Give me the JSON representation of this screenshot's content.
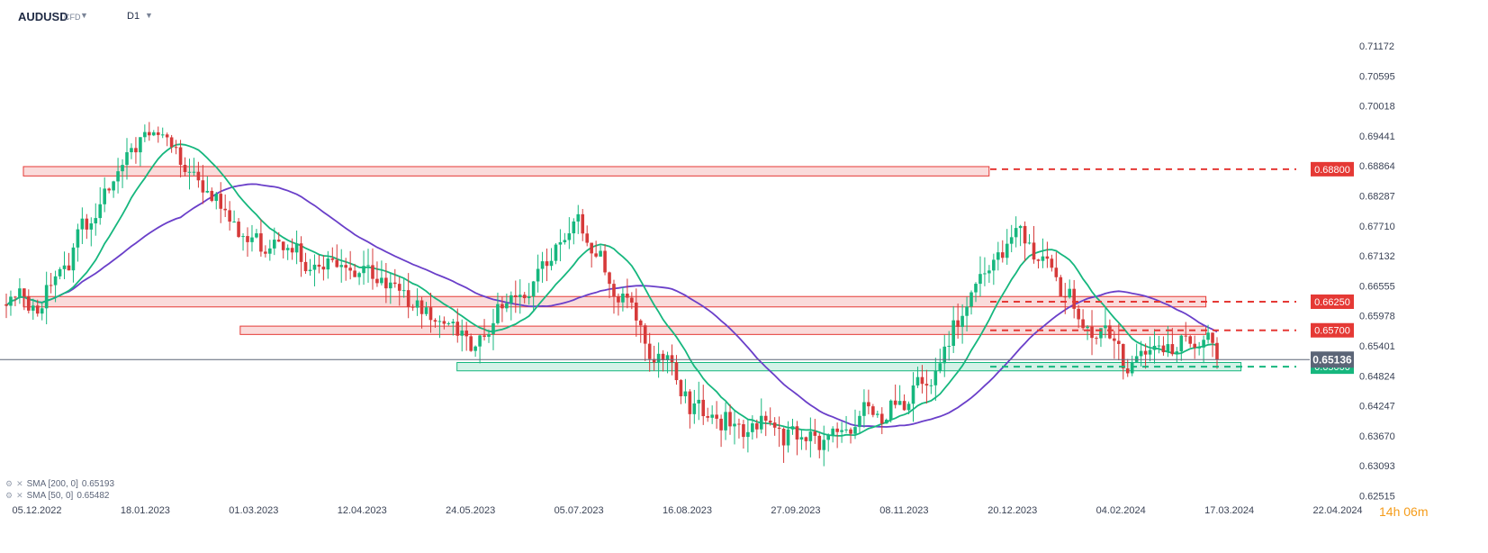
{
  "header": {
    "symbol": "AUDUSD",
    "instrument_type": "CFD",
    "timeframe": "D1",
    "dropdown_icon": "chevron-down-icon"
  },
  "indicators": [
    {
      "label": "SMA [200, 0]",
      "value": "0.65193",
      "color": "#6a3fc9"
    },
    {
      "label": "SMA [50, 0]",
      "value": "0.65482",
      "color": "#16b77e"
    }
  ],
  "countdown": {
    "hours": "14h",
    "minutes": "06m"
  },
  "colors": {
    "up": "#16b77e",
    "down": "#d63a3a",
    "resistance": "#e53935",
    "support": "#16b77e",
    "current_price": "#5b6577"
  },
  "chart_data": {
    "type": "candlestick",
    "symbol": "AUDUSD",
    "timeframe": "D1",
    "x_labels": [
      "05.12.2022",
      "18.01.2023",
      "01.03.2023",
      "12.04.2023",
      "24.05.2023",
      "05.07.2023",
      "16.08.2023",
      "27.09.2023",
      "08.11.2023",
      "20.12.2023",
      "04.02.2024",
      "17.03.2024",
      "22.04.2024"
    ],
    "y_ticks": [
      "0.71172",
      "0.70595",
      "0.70018",
      "0.69441",
      "0.68864",
      "0.68287",
      "0.67710",
      "0.67132",
      "0.66555",
      "0.65978",
      "0.65401",
      "0.64824",
      "0.64247",
      "0.63670",
      "0.63093",
      "0.62515"
    ],
    "ylim": [
      0.62515,
      0.71172
    ],
    "current_price": "0.65136",
    "levels": [
      {
        "label": "0.68800",
        "value": 0.688,
        "kind": "resistance"
      },
      {
        "label": "0.66250",
        "value": 0.6625,
        "kind": "resistance"
      },
      {
        "label": "0.65700",
        "value": 0.657,
        "kind": "resistance"
      },
      {
        "label": "0.65000",
        "value": 0.65,
        "kind": "support"
      }
    ],
    "zones": [
      {
        "from": "05.12.2022",
        "to": "20.12.2023",
        "low": 0.6867,
        "high": 0.6885,
        "kind": "resistance"
      },
      {
        "from": "05.12.2022",
        "to": "17.03.2024",
        "low": 0.6615,
        "high": 0.6635,
        "kind": "resistance"
      },
      {
        "from": "01.03.2023",
        "to": "17.03.2024",
        "low": 0.6562,
        "high": 0.6578,
        "kind": "resistance"
      },
      {
        "from": "24.05.2023",
        "to": "17.03.2024",
        "low": 0.6492,
        "high": 0.6508,
        "kind": "support"
      }
    ],
    "anchors": [
      [
        "05.12.2022",
        0.662
      ],
      [
        "18.01.2023",
        0.6975
      ],
      [
        "01.03.2023",
        0.6725
      ],
      [
        "12.04.2023",
        0.668
      ],
      [
        "24.05.2023",
        0.656
      ],
      [
        "05.07.2023",
        0.676
      ],
      [
        "16.08.2023",
        0.642
      ],
      [
        "27.09.2023",
        0.635
      ],
      [
        "08.11.2023",
        0.644
      ],
      [
        "20.12.2023",
        0.676
      ],
      [
        "04.02.2024",
        0.651
      ],
      [
        "17.03.2024",
        0.6575
      ]
    ]
  }
}
